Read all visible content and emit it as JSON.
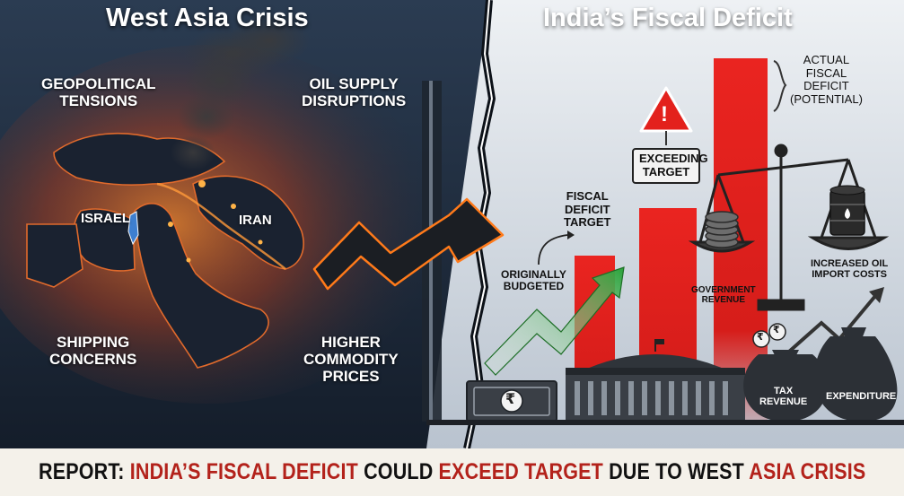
{
  "left_panel": {
    "title": "West Asia Crisis",
    "labels": {
      "geopolitical": "Geopolitical\nTensions",
      "oil_supply": "Oil Supply\nDisruptions",
      "israel": "Israel",
      "iran": "Iran",
      "shipping": "Shipping\nConcerns",
      "commodity": "Higher\nCommodity\nPrices"
    }
  },
  "right_panel": {
    "title": "India’s Fiscal Deficit",
    "labels": {
      "actual": "Actual\nFiscal\nDeficit\n(Potential)",
      "exceeding": "Exceeding\nTarget",
      "fiscal_target": "Fiscal\nDeficit\nTarget",
      "originally": "Originally\nBudgeted",
      "gov_revenue": "Government\nRevenue",
      "oil_import": "Increased Oil\nImport Costs",
      "tax_revenue": "Tax\nRevenue",
      "expenditure": "Expenditure"
    },
    "warning_glyph": "!",
    "rupee_glyph": "₹"
  },
  "footer": {
    "part1": "Report: ",
    "part2": "India’s Fiscal Deficit",
    "part3": " could ",
    "part4": "exceed target",
    "part5": " due to West ",
    "part6": "Asia Crisis"
  },
  "colors": {
    "left_bg": "#1c2a3c",
    "right_bg": "#dde3ea",
    "accent_red": "#e3211c",
    "accent_green": "#2eaa3c",
    "glow": "#ff7a1a",
    "footer_red": "#b3221b"
  },
  "icons": [
    "warning-icon",
    "rupee-icon",
    "money-bag-icon",
    "oil-barrel-icon",
    "balance-scale-icon",
    "parliament-icon",
    "banknote-icon",
    "coin-stack-icon",
    "trend-arrow-icon"
  ]
}
